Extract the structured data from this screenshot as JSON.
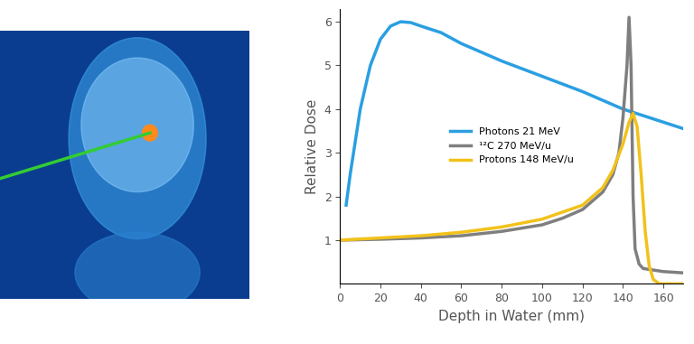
{
  "chart_data": {
    "type": "line",
    "xlabel": "Depth in Water (mm)",
    "ylabel": "Relative Dose",
    "xlim": [
      0,
      170
    ],
    "xticks": [
      0,
      20,
      40,
      60,
      80,
      100,
      120,
      140,
      160
    ],
    "ylim": [
      0,
      6.3
    ],
    "yticks": [
      1,
      2,
      3,
      4,
      5,
      6
    ],
    "legend": "center",
    "series": [
      {
        "name": "Photons 21 MeV",
        "color": "#2a9fe2",
        "x": [
          3,
          5,
          10,
          15,
          20,
          25,
          30,
          35,
          40,
          50,
          60,
          80,
          100,
          120,
          140,
          160,
          170
        ],
        "values": [
          1.8,
          2.5,
          4.0,
          5.0,
          5.6,
          5.9,
          6.0,
          5.98,
          5.9,
          5.75,
          5.5,
          5.1,
          4.75,
          4.4,
          4.0,
          3.7,
          3.55
        ]
      },
      {
        "name": "¹²C 270 MeV/u",
        "color": "#7f7f7f",
        "x": [
          0,
          20,
          40,
          60,
          80,
          100,
          110,
          120,
          130,
          135,
          138,
          140,
          142,
          143,
          144,
          145,
          146,
          148,
          150,
          160,
          170
        ],
        "values": [
          1.0,
          1.02,
          1.05,
          1.1,
          1.2,
          1.35,
          1.5,
          1.7,
          2.1,
          2.5,
          3.0,
          3.8,
          5.0,
          6.1,
          5.0,
          2.0,
          0.8,
          0.45,
          0.35,
          0.28,
          0.25
        ]
      },
      {
        "name": "Protons 148 MeV/u",
        "color": "#f2c21b",
        "x": [
          0,
          20,
          40,
          60,
          80,
          100,
          120,
          130,
          135,
          140,
          143,
          145,
          147,
          149,
          151,
          153,
          155,
          158,
          170
        ],
        "values": [
          1.0,
          1.05,
          1.1,
          1.18,
          1.3,
          1.48,
          1.8,
          2.2,
          2.6,
          3.2,
          3.7,
          3.9,
          3.6,
          2.5,
          1.2,
          0.4,
          0.1,
          0.0,
          0.0
        ]
      }
    ]
  }
}
